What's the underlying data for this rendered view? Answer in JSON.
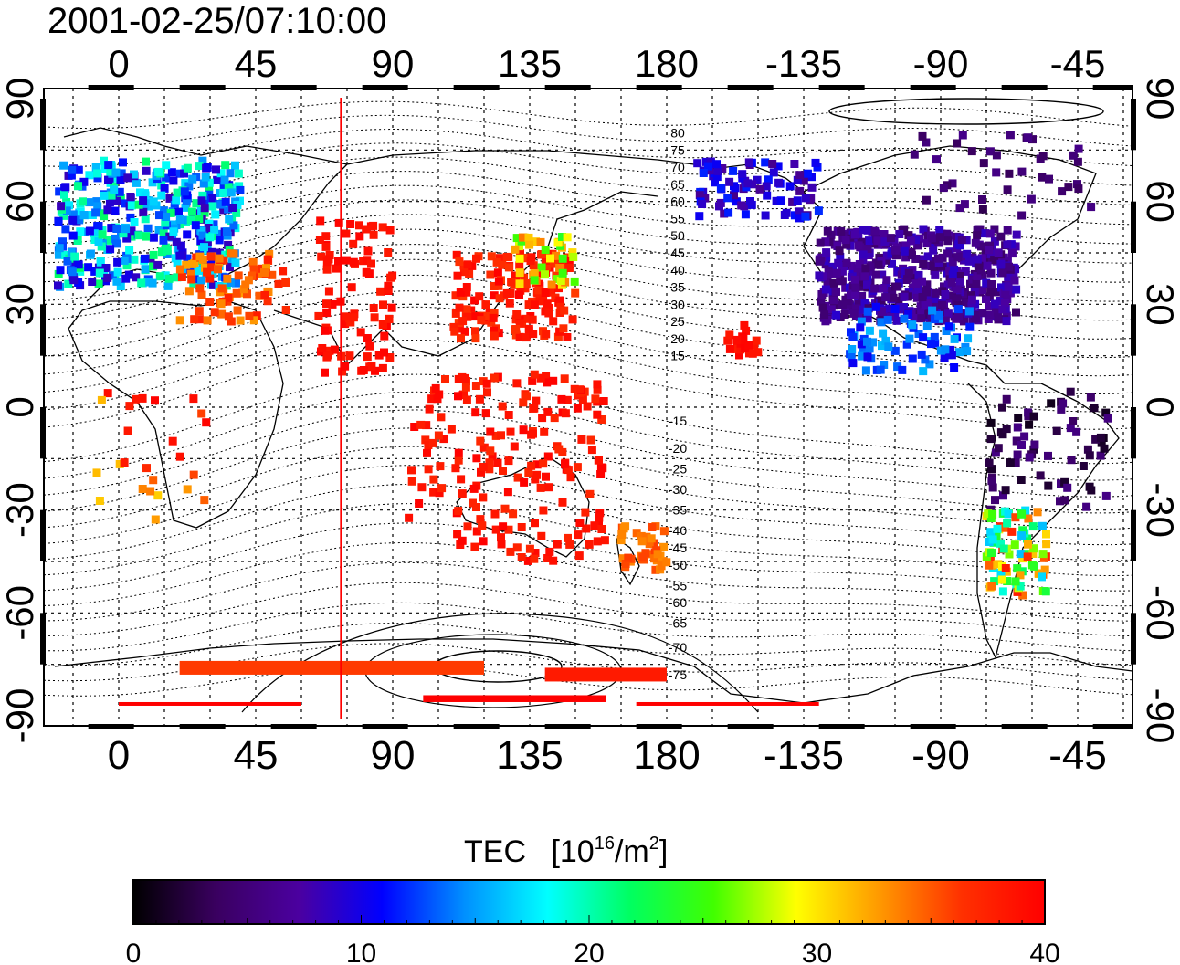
{
  "timestamp": "2001-02-25/07:10:00",
  "top_lon_ticks": [
    "0",
    "45",
    "90",
    "135",
    "180",
    "-135",
    "-90",
    "-45"
  ],
  "bottom_lon_ticks": [
    "0",
    "45",
    "90",
    "135",
    "180",
    "-135",
    "-90",
    "-45"
  ],
  "left_lat_ticks": [
    "90",
    "60",
    "30",
    "0",
    "-30",
    "-60",
    "-90"
  ],
  "right_lat_ticks": [
    "90",
    "60",
    "30",
    "0",
    "-30",
    "-60",
    "-90"
  ],
  "contour_labels": [
    {
      "text": "80",
      "lat": 80
    },
    {
      "text": "75",
      "lat": 75
    },
    {
      "text": "70",
      "lat": 70
    },
    {
      "text": "65",
      "lat": 65
    },
    {
      "text": "60",
      "lat": 60
    },
    {
      "text": "55",
      "lat": 55
    },
    {
      "text": "50",
      "lat": 50
    },
    {
      "text": "45",
      "lat": 45
    },
    {
      "text": "40",
      "lat": 40
    },
    {
      "text": "35",
      "lat": 35
    },
    {
      "text": "30",
      "lat": 30
    },
    {
      "text": "25",
      "lat": 25
    },
    {
      "text": "20",
      "lat": 20
    },
    {
      "text": "15",
      "lat": 15
    },
    {
      "text": "-15",
      "lat": -4
    },
    {
      "text": "-20",
      "lat": -12
    },
    {
      "text": "-25",
      "lat": -18
    },
    {
      "text": "-30",
      "lat": -24
    },
    {
      "text": "-35",
      "lat": -30
    },
    {
      "text": "-40",
      "lat": -36
    },
    {
      "text": "-45",
      "lat": -41
    },
    {
      "text": "-50",
      "lat": -46
    },
    {
      "text": "-55",
      "lat": -52
    },
    {
      "text": "-60",
      "lat": -57
    },
    {
      "text": "-65",
      "lat": -63
    },
    {
      "text": "-70",
      "lat": -70
    },
    {
      "text": "-75",
      "lat": -78
    }
  ],
  "noon_meridian_lon": 73,
  "colorbar": {
    "title": "TEC",
    "unit_prefix": "[10",
    "unit_exp": "16",
    "unit_mid": "/m",
    "unit_exp2": "2",
    "unit_suffix": "]",
    "ticks": [
      "0",
      "10",
      "20",
      "30",
      "40"
    ],
    "min": 0,
    "max": 40,
    "stops": [
      "#000000",
      "#3a0060",
      "#4b00a0",
      "#0000ff",
      "#0090ff",
      "#00ffff",
      "#00ff60",
      "#40ff00",
      "#ffff00",
      "#ff9900",
      "#ff3000",
      "#ff0000"
    ]
  },
  "regions": [
    {
      "lon": [
        -20,
        40
      ],
      "lat": [
        35,
        72
      ],
      "tec": 8,
      "tec2": 22,
      "n": 420
    },
    {
      "lon": [
        20,
        55
      ],
      "lat": [
        25,
        45
      ],
      "tec": 32,
      "tec2": 38,
      "n": 80
    },
    {
      "lon": [
        65,
        90
      ],
      "lat": [
        10,
        55
      ],
      "tec": 38,
      "tec2": 40,
      "n": 90
    },
    {
      "lon": [
        110,
        150
      ],
      "lat": [
        20,
        45
      ],
      "tec": 36,
      "tec2": 40,
      "n": 160
    },
    {
      "lon": [
        130,
        150
      ],
      "lat": [
        35,
        50
      ],
      "tec": 24,
      "tec2": 34,
      "n": 40
    },
    {
      "lon": [
        95,
        160
      ],
      "lat": [
        -45,
        10
      ],
      "tec": 37,
      "tec2": 40,
      "n": 200
    },
    {
      "lon": [
        165,
        180
      ],
      "lat": [
        -48,
        -34
      ],
      "tec": 33,
      "tec2": 36,
      "n": 40
    },
    {
      "lon": [
        -130,
        -65
      ],
      "lat": [
        25,
        52
      ],
      "tec": 4,
      "tec2": 9,
      "n": 520
    },
    {
      "lon": [
        -170,
        -130
      ],
      "lat": [
        55,
        72
      ],
      "tec": 6,
      "tec2": 12,
      "n": 90
    },
    {
      "lon": [
        -120,
        -80
      ],
      "lat": [
        10,
        30
      ],
      "tec": 10,
      "tec2": 16,
      "n": 80
    },
    {
      "lon": [
        -75,
        -35
      ],
      "lat": [
        -30,
        5
      ],
      "tec": 1,
      "tec2": 6,
      "n": 70
    },
    {
      "lon": [
        -75,
        -55
      ],
      "lat": [
        -55,
        -30
      ],
      "tec": 16,
      "tec2": 38,
      "n": 90
    },
    {
      "lon": [
        -160,
        -150
      ],
      "lat": [
        15,
        25
      ],
      "tec": 38,
      "tec2": 40,
      "n": 20
    },
    {
      "lon": [
        -10,
        30
      ],
      "lat": [
        -35,
        5
      ],
      "tec": 30,
      "tec2": 40,
      "n": 25
    },
    {
      "lon": [
        -100,
        -40
      ],
      "lat": [
        55,
        80
      ],
      "tec": 3,
      "tec2": 6,
      "n": 40
    }
  ],
  "antarctic_strips": [
    {
      "lon": [
        0,
        60
      ],
      "lat": [
        -87,
        -86
      ],
      "tec": 40
    },
    {
      "lon": [
        100,
        160
      ],
      "lat": [
        -86,
        -84
      ],
      "tec": 40
    },
    {
      "lon": [
        170,
        230
      ],
      "lat": [
        -87,
        -86
      ],
      "tec": 40
    },
    {
      "lon": [
        20,
        120
      ],
      "lat": [
        -78,
        -74
      ],
      "tec": 36
    },
    {
      "lon": [
        140,
        180
      ],
      "lat": [
        -80,
        -76
      ],
      "tec": 38
    }
  ]
}
